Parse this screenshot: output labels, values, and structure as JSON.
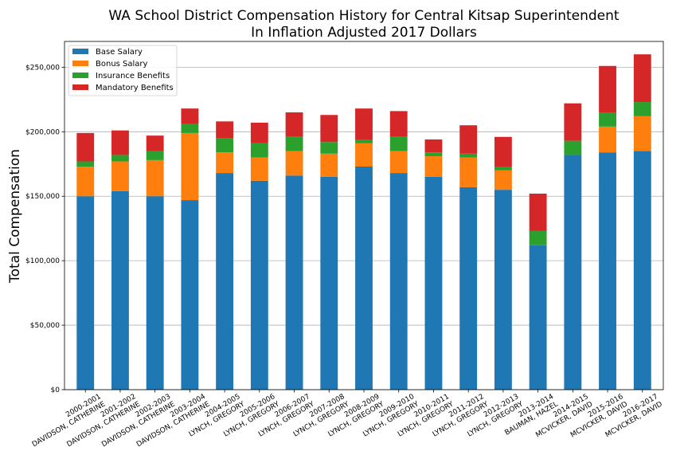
{
  "chart_data": {
    "type": "bar",
    "stacked": true,
    "title": "WA School District Compensation History for Central Kitsap Superintendent",
    "subtitle": "In Inflation Adjusted 2017 Dollars",
    "xlabel": "",
    "ylabel": "Total Compensation",
    "ylim": [
      0,
      270000
    ],
    "yticks": [
      0,
      50000,
      100000,
      150000,
      200000,
      250000
    ],
    "ytick_labels": [
      "$0",
      "$50,000",
      "$100,000",
      "$150,000",
      "$200,000",
      "$250,000"
    ],
    "grid": "horizontal",
    "legend_position": "top-left",
    "categories": [
      "2000-2001\nDAVIDSON, CATHERINE",
      "2001-2002\nDAVIDSON, CATHERINE",
      "2002-2003\nDAVIDSON, CATHERINE",
      "2003-2004\nDAVIDSON, CATHERINE",
      "2004-2005\nLYNCH, GREGORY",
      "2005-2006\nLYNCH, GREGORY",
      "2006-2007\nLYNCH, GREGORY",
      "2007-2008\nLYNCH, GREGORY",
      "2008-2009\nLYNCH, GREGORY",
      "2009-2010\nLYNCH, GREGORY",
      "2010-2011\nLYNCH, GREGORY",
      "2011-2012\nLYNCH, GREGORY",
      "2012-2013\nLYNCH, GREGORY",
      "2013-2014\nBAUMAN, HAZEL",
      "2014-2015\nMCVICKER, DAVID",
      "2015-2016\nMCVICKER, DAVID",
      "2016-2017\nMCVICKER, DAVID"
    ],
    "series": [
      {
        "name": "Base Salary",
        "color": "#1f77b4",
        "values": [
          150000,
          154000,
          150000,
          147000,
          168000,
          162000,
          166000,
          165000,
          173000,
          168000,
          165000,
          157000,
          155000,
          112000,
          182000,
          184000,
          185000
        ]
      },
      {
        "name": "Bonus Salary",
        "color": "#ff7f0e",
        "values": [
          23000,
          23000,
          28000,
          52000,
          16000,
          18000,
          19000,
          18000,
          18000,
          17000,
          16000,
          23000,
          15000,
          0,
          0,
          20000,
          27000
        ]
      },
      {
        "name": "Insurance Benefits",
        "color": "#2ca02c",
        "values": [
          4000,
          5000,
          7000,
          7000,
          11000,
          11000,
          11000,
          9000,
          3000,
          11000,
          3000,
          3000,
          3000,
          11000,
          11000,
          11000,
          11000
        ]
      },
      {
        "name": "Mandatory Benefits",
        "color": "#d62728",
        "values": [
          22000,
          19000,
          12000,
          12000,
          13000,
          16000,
          19000,
          21000,
          24000,
          20000,
          10000,
          22000,
          23000,
          29000,
          29000,
          36000,
          37000
        ]
      }
    ]
  }
}
